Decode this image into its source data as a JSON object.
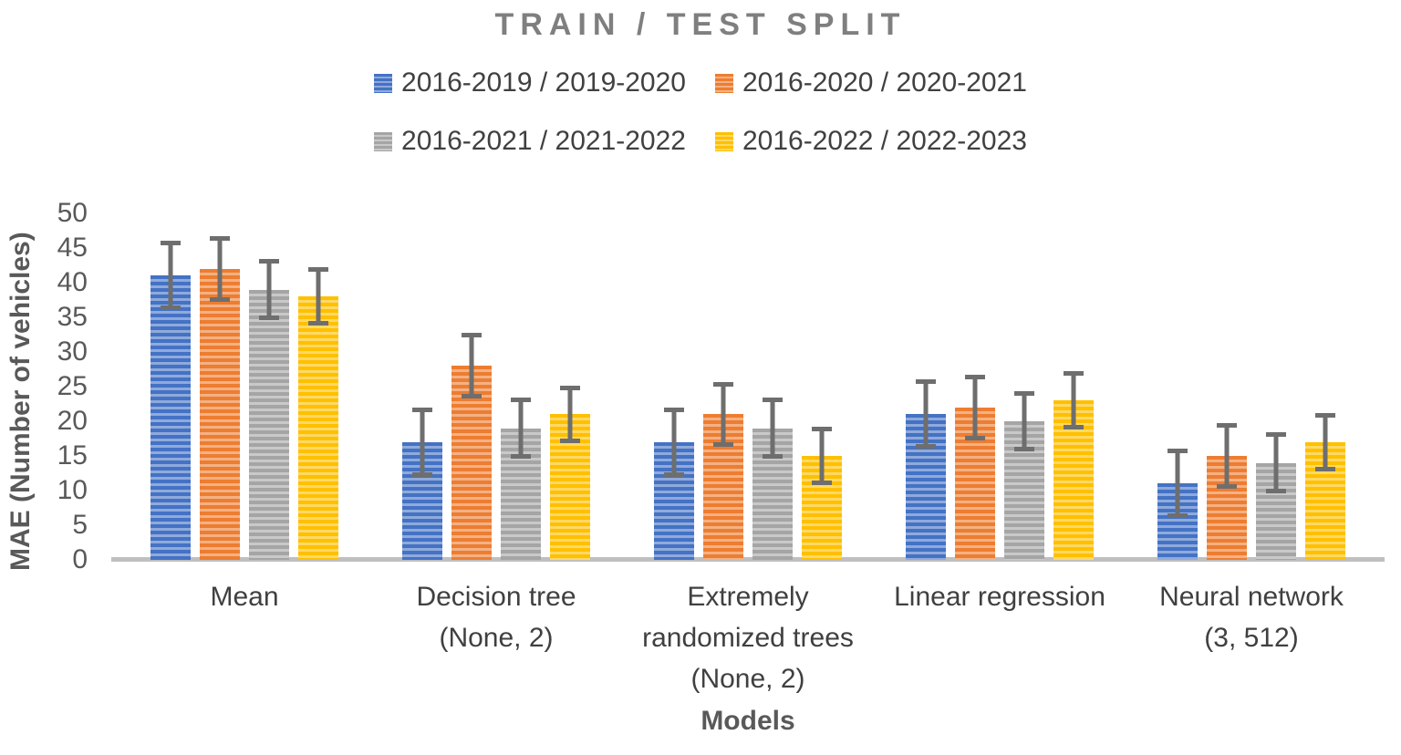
{
  "chart_data": {
    "type": "bar",
    "title": "TRAIN / TEST SPLIT",
    "xlabel": "Models",
    "ylabel": "MAE (Number of vehicles)",
    "ylim": [
      0,
      50
    ],
    "ytick_step": 5,
    "grid": false,
    "legend_position": "top",
    "categories": [
      "Mean",
      "Decision tree\n(None, 2)",
      "Extremely\nrandomized trees\n(None, 2)",
      "Linear regression",
      "Neural network\n(3, 512)"
    ],
    "series": [
      {
        "name": "2016-2019 / 2019-2020",
        "color": "#4472C4",
        "stripe_color": "#8FAADC",
        "values": [
          41,
          17,
          17,
          21,
          11
        ],
        "error": 5
      },
      {
        "name": "2016-2020 / 2020-2021",
        "color": "#ED7D31",
        "stripe_color": "#F4B183",
        "values": [
          42,
          28,
          21,
          22,
          15
        ],
        "error": 4.7
      },
      {
        "name": "2016-2021 / 2021-2022",
        "color": "#A5A5A5",
        "stripe_color": "#C9C9C9",
        "values": [
          39,
          19,
          19,
          20,
          14
        ],
        "error": 4.4
      },
      {
        "name": "2016-2022 / 2022-2023",
        "color": "#FFC000",
        "stripe_color": "#FFD966",
        "values": [
          38,
          21,
          15,
          23,
          17
        ],
        "error": 4.2
      }
    ],
    "error_bar_color": "#6E6E6E",
    "axis_line_color": "#BFBFBF",
    "title_color": "#7f7f7f",
    "text_color": "#404040",
    "tick_color": "#595959"
  }
}
